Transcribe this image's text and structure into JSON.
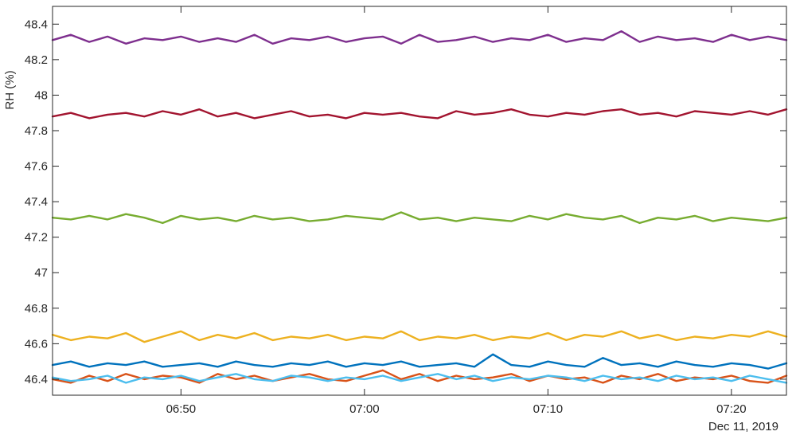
{
  "chart_data": {
    "type": "line",
    "title": "",
    "xlabel": "",
    "ylabel": "RH (%)",
    "date_label": "Dec 11, 2019",
    "xlim": [
      "06:43",
      "07:23"
    ],
    "ylim": [
      46.31,
      48.5
    ],
    "grid": false,
    "x_ticks": [
      "06:50",
      "07:00",
      "07:10",
      "07:20"
    ],
    "y_ticks": [
      "46.4",
      "46.6",
      "46.8",
      "47",
      "47.2",
      "47.4",
      "47.6",
      "47.8",
      "48",
      "48.2",
      "48.4"
    ],
    "x": [
      "06:43",
      "06:44",
      "06:45",
      "06:46",
      "06:47",
      "06:48",
      "06:49",
      "06:50",
      "06:51",
      "06:52",
      "06:53",
      "06:54",
      "06:55",
      "06:56",
      "06:57",
      "06:58",
      "06:59",
      "07:00",
      "07:01",
      "07:02",
      "07:03",
      "07:04",
      "07:05",
      "07:06",
      "07:07",
      "07:08",
      "07:09",
      "07:10",
      "07:11",
      "07:12",
      "07:13",
      "07:14",
      "07:15",
      "07:16",
      "07:17",
      "07:18",
      "07:19",
      "07:20",
      "07:21",
      "07:22",
      "07:23"
    ],
    "series": [
      {
        "color": "#7E2F8E",
        "values": [
          48.31,
          48.34,
          48.3,
          48.33,
          48.29,
          48.32,
          48.31,
          48.33,
          48.3,
          48.32,
          48.3,
          48.34,
          48.29,
          48.32,
          48.31,
          48.33,
          48.3,
          48.32,
          48.33,
          48.29,
          48.34,
          48.3,
          48.31,
          48.33,
          48.3,
          48.32,
          48.31,
          48.34,
          48.3,
          48.32,
          48.31,
          48.36,
          48.3,
          48.33,
          48.31,
          48.32,
          48.3,
          48.34,
          48.31,
          48.33,
          48.31
        ]
      },
      {
        "color": "#A2142F",
        "values": [
          47.88,
          47.9,
          47.87,
          47.89,
          47.9,
          47.88,
          47.91,
          47.89,
          47.92,
          47.88,
          47.9,
          47.87,
          47.89,
          47.91,
          47.88,
          47.89,
          47.87,
          47.9,
          47.89,
          47.9,
          47.88,
          47.87,
          47.91,
          47.89,
          47.9,
          47.92,
          47.89,
          47.88,
          47.9,
          47.89,
          47.91,
          47.92,
          47.89,
          47.9,
          47.88,
          47.91,
          47.9,
          47.89,
          47.91,
          47.89,
          47.92
        ]
      },
      {
        "color": "#77AC30",
        "values": [
          47.31,
          47.3,
          47.32,
          47.3,
          47.33,
          47.31,
          47.28,
          47.32,
          47.3,
          47.31,
          47.29,
          47.32,
          47.3,
          47.31,
          47.29,
          47.3,
          47.32,
          47.31,
          47.3,
          47.34,
          47.3,
          47.31,
          47.29,
          47.31,
          47.3,
          47.29,
          47.32,
          47.3,
          47.33,
          47.31,
          47.3,
          47.32,
          47.28,
          47.31,
          47.3,
          47.32,
          47.29,
          47.31,
          47.3,
          47.29,
          47.31
        ]
      },
      {
        "color": "#EDB120",
        "values": [
          46.65,
          46.62,
          46.64,
          46.63,
          46.66,
          46.61,
          46.64,
          46.67,
          46.62,
          46.65,
          46.63,
          46.66,
          46.62,
          46.64,
          46.63,
          46.65,
          46.62,
          46.64,
          46.63,
          46.67,
          46.62,
          46.64,
          46.63,
          46.65,
          46.62,
          46.64,
          46.63,
          46.66,
          46.62,
          46.65,
          46.64,
          46.67,
          46.63,
          46.65,
          46.62,
          46.64,
          46.63,
          46.65,
          46.64,
          46.67,
          46.64
        ]
      },
      {
        "color": "#0072BD",
        "values": [
          46.48,
          46.5,
          46.47,
          46.49,
          46.48,
          46.5,
          46.47,
          46.48,
          46.49,
          46.47,
          46.5,
          46.48,
          46.47,
          46.49,
          46.48,
          46.5,
          46.47,
          46.49,
          46.48,
          46.5,
          46.47,
          46.48,
          46.49,
          46.47,
          46.54,
          46.48,
          46.47,
          46.5,
          46.48,
          46.47,
          46.52,
          46.48,
          46.49,
          46.47,
          46.5,
          46.48,
          46.47,
          46.49,
          46.48,
          46.46,
          46.49
        ]
      },
      {
        "color": "#D95319",
        "values": [
          46.4,
          46.38,
          46.42,
          46.39,
          46.43,
          46.4,
          46.42,
          46.41,
          46.38,
          46.43,
          46.4,
          46.42,
          46.39,
          46.41,
          46.43,
          46.4,
          46.39,
          46.42,
          46.45,
          46.4,
          46.43,
          46.39,
          46.42,
          46.4,
          46.41,
          46.43,
          46.39,
          46.42,
          46.4,
          46.41,
          46.38,
          46.42,
          46.4,
          46.43,
          46.39,
          46.41,
          46.4,
          46.42,
          46.39,
          46.38,
          46.42
        ]
      },
      {
        "color": "#4DBEEE",
        "values": [
          46.41,
          46.39,
          46.4,
          46.42,
          46.38,
          46.41,
          46.4,
          46.42,
          46.39,
          46.41,
          46.43,
          46.4,
          46.39,
          46.42,
          46.41,
          46.39,
          46.41,
          46.4,
          46.42,
          46.39,
          46.41,
          46.43,
          46.4,
          46.42,
          46.39,
          46.41,
          46.4,
          46.42,
          46.41,
          46.39,
          46.42,
          46.4,
          46.41,
          46.39,
          46.42,
          46.4,
          46.41,
          46.39,
          46.42,
          46.4,
          46.38
        ]
      }
    ]
  }
}
